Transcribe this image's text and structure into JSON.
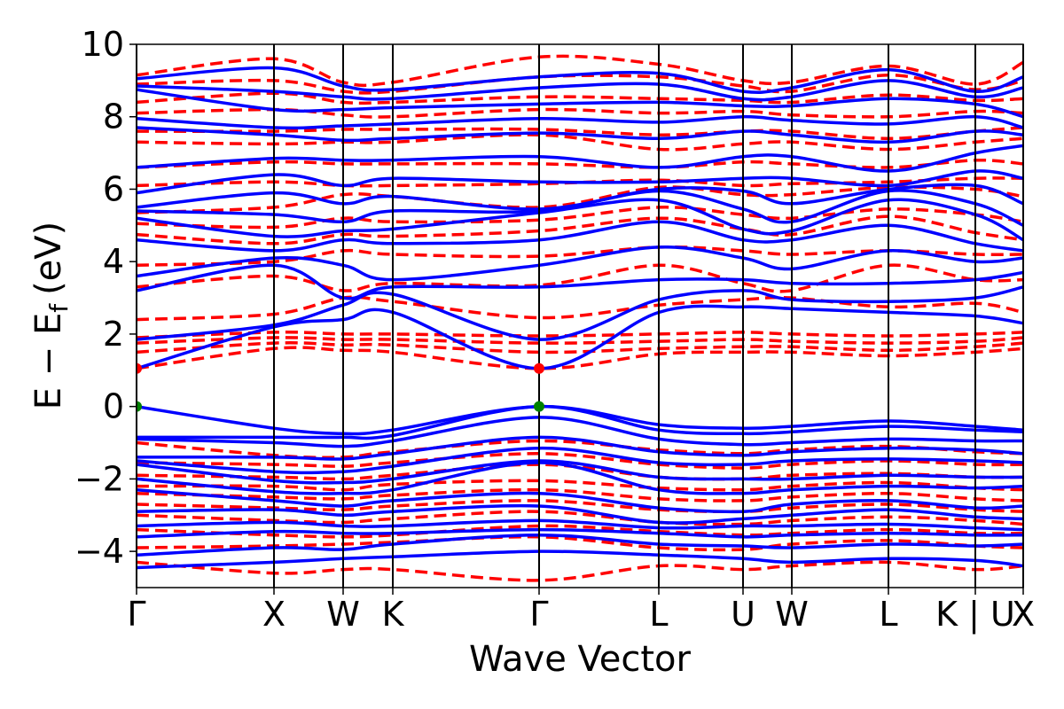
{
  "chart_data": {
    "type": "line",
    "title": "",
    "xlabel": "Wave Vector",
    "ylabel": "E − E",
    "ylabel_subscript": "f",
    "ylabel_unit": "(eV)",
    "ylim": [
      -5,
      10
    ],
    "yticks": [
      {
        "value": -4,
        "label": "−4"
      },
      {
        "value": -2,
        "label": "−2"
      },
      {
        "value": 0,
        "label": "0"
      },
      {
        "value": 2,
        "label": "2"
      },
      {
        "value": 4,
        "label": "4"
      },
      {
        "value": 6,
        "label": "6"
      },
      {
        "value": 8,
        "label": "8"
      },
      {
        "value": 10,
        "label": "10"
      }
    ],
    "xlim": [
      0,
      1
    ],
    "kpoints": [
      {
        "label": "Γ",
        "x": 0.0
      },
      {
        "label": "X",
        "x": 0.155
      },
      {
        "label": "W",
        "x": 0.233
      },
      {
        "label": "K",
        "x": 0.289
      },
      {
        "label": "Γ",
        "x": 0.454
      },
      {
        "label": "L",
        "x": 0.589
      },
      {
        "label": "U",
        "x": 0.684
      },
      {
        "label": "W",
        "x": 0.739
      },
      {
        "label": "L",
        "x": 0.848
      },
      {
        "label": "K | U",
        "x": 0.946
      },
      {
        "label": "X",
        "x": 1.0
      }
    ],
    "grid": false,
    "legend": "none",
    "colors": {
      "spin_up": "#0000ff",
      "spin_down": "#ff0000",
      "vbm": "#008000",
      "cbm": "#ff0000"
    },
    "series": [
      {
        "style": "solid",
        "color": "#0000ff",
        "bands": [
          [
            -4.45,
            -4.3,
            -4.2,
            -4.15,
            -4.0,
            -4.1,
            -4.2,
            -4.3,
            -4.2,
            -4.25,
            -4.4
          ],
          [
            -4.1,
            -3.9,
            -3.95,
            -3.8,
            -3.55,
            -3.8,
            -3.85,
            -3.9,
            -3.8,
            -3.85,
            -3.8
          ],
          [
            -3.6,
            -3.45,
            -3.5,
            -3.5,
            -3.4,
            -3.5,
            -3.6,
            -3.55,
            -3.5,
            -3.55,
            -3.55
          ],
          [
            -3.3,
            -3.2,
            -3.3,
            -3.3,
            -3.15,
            -3.35,
            -3.3,
            -3.3,
            -3.25,
            -3.35,
            -3.4
          ],
          [
            -2.9,
            -2.85,
            -3.0,
            -2.9,
            -2.75,
            -3.2,
            -3.1,
            -3.0,
            -2.85,
            -3.05,
            -3.1
          ],
          [
            -2.3,
            -2.6,
            -2.75,
            -2.6,
            -2.4,
            -2.8,
            -2.9,
            -2.7,
            -2.6,
            -2.8,
            -2.75
          ],
          [
            -2.0,
            -2.35,
            -2.4,
            -2.3,
            -1.55,
            -2.3,
            -2.4,
            -2.3,
            -2.2,
            -2.25,
            -2.2
          ],
          [
            -1.6,
            -2.05,
            -2.1,
            -2.0,
            -1.5,
            -1.95,
            -2.0,
            -2.0,
            -1.9,
            -1.95,
            -1.95
          ],
          [
            -1.5,
            -1.8,
            -1.8,
            -1.65,
            -1.15,
            -1.55,
            -1.6,
            -1.5,
            -1.45,
            -1.5,
            -1.55
          ],
          [
            -1.4,
            -1.4,
            -1.45,
            -1.3,
            -0.85,
            -1.25,
            -1.35,
            -1.25,
            -1.15,
            -1.2,
            -1.3
          ],
          [
            -0.9,
            -1.0,
            -1.1,
            -0.95,
            -0.3,
            -0.9,
            -1.05,
            -1.0,
            -0.9,
            -0.95,
            -0.95
          ],
          [
            -0.85,
            -0.85,
            -0.85,
            -0.8,
            0.0,
            -0.65,
            -0.75,
            -0.7,
            -0.55,
            -0.65,
            -0.7
          ],
          [
            0.0,
            -0.6,
            -0.75,
            -0.65,
            0.0,
            -0.5,
            -0.6,
            -0.55,
            -0.4,
            -0.55,
            -0.65
          ],
          [
            1.05,
            2.2,
            2.4,
            2.6,
            1.05,
            2.6,
            2.75,
            2.7,
            2.6,
            2.5,
            2.3
          ],
          [
            1.85,
            2.25,
            2.8,
            3.1,
            1.85,
            2.95,
            3.2,
            2.95,
            2.9,
            3.0,
            3.3
          ],
          [
            3.2,
            3.9,
            3.0,
            3.3,
            3.3,
            3.5,
            3.5,
            3.4,
            3.4,
            3.5,
            3.7
          ],
          [
            3.6,
            4.1,
            3.9,
            3.5,
            3.9,
            4.4,
            4.1,
            3.8,
            4.3,
            4.0,
            4.1
          ],
          [
            4.6,
            4.3,
            4.6,
            4.5,
            4.6,
            5.1,
            4.6,
            4.6,
            5.0,
            4.5,
            4.3
          ],
          [
            5.2,
            4.7,
            4.85,
            4.9,
            5.35,
            5.7,
            4.9,
            4.85,
            5.7,
            5.3,
            4.6
          ],
          [
            5.4,
            5.3,
            5.1,
            5.4,
            5.4,
            5.95,
            5.45,
            5.1,
            5.95,
            5.6,
            5.0
          ],
          [
            5.5,
            5.9,
            5.6,
            5.8,
            5.45,
            6.0,
            5.95,
            5.6,
            6.0,
            6.1,
            5.6
          ],
          [
            5.9,
            6.4,
            6.1,
            6.3,
            6.2,
            6.2,
            6.3,
            6.3,
            6.1,
            6.5,
            6.3
          ],
          [
            6.6,
            6.85,
            6.8,
            6.8,
            6.9,
            6.6,
            6.9,
            6.9,
            6.5,
            7.0,
            7.2
          ],
          [
            7.7,
            7.5,
            7.35,
            7.4,
            7.55,
            7.4,
            7.6,
            7.5,
            7.3,
            7.6,
            7.5
          ],
          [
            7.95,
            7.7,
            7.75,
            7.8,
            7.95,
            7.85,
            8.0,
            7.9,
            7.8,
            8.0,
            7.7
          ],
          [
            8.75,
            8.2,
            8.2,
            8.25,
            8.35,
            8.4,
            8.3,
            8.3,
            8.5,
            8.35,
            8.0
          ],
          [
            8.85,
            8.7,
            8.55,
            8.5,
            8.8,
            8.9,
            8.5,
            8.55,
            9.0,
            8.55,
            8.8
          ],
          [
            9.05,
            9.35,
            8.85,
            8.75,
            9.1,
            9.2,
            8.7,
            8.8,
            9.3,
            8.7,
            9.1
          ]
        ]
      },
      {
        "style": "dashed",
        "color": "#ff0000",
        "bands": [
          [
            -4.3,
            -4.6,
            -4.5,
            -4.5,
            -4.8,
            -4.4,
            -4.5,
            -4.4,
            -4.3,
            -4.5,
            -4.4
          ],
          [
            -3.9,
            -3.85,
            -3.8,
            -3.75,
            -3.6,
            -3.9,
            -3.95,
            -3.8,
            -3.7,
            -3.85,
            -3.9
          ],
          [
            -3.4,
            -3.55,
            -3.6,
            -3.55,
            -3.3,
            -3.45,
            -3.55,
            -3.5,
            -3.4,
            -3.5,
            -3.5
          ],
          [
            -3.0,
            -3.15,
            -3.2,
            -3.1,
            -2.9,
            -3.2,
            -3.25,
            -3.15,
            -3.05,
            -3.15,
            -3.25
          ],
          [
            -2.7,
            -2.8,
            -2.85,
            -2.75,
            -2.6,
            -2.85,
            -2.9,
            -2.8,
            -2.7,
            -2.85,
            -2.9
          ],
          [
            -2.4,
            -2.5,
            -2.55,
            -2.45,
            -2.3,
            -2.55,
            -2.6,
            -2.5,
            -2.4,
            -2.55,
            -2.6
          ],
          [
            -2.2,
            -2.2,
            -2.3,
            -2.15,
            -2.05,
            -2.25,
            -2.3,
            -2.2,
            -2.1,
            -2.25,
            -2.3
          ],
          [
            -1.9,
            -1.95,
            -2.0,
            -1.9,
            -1.6,
            -1.95,
            -2.0,
            -1.9,
            -1.85,
            -1.95,
            -1.95
          ],
          [
            -1.55,
            -1.6,
            -1.65,
            -1.55,
            -1.3,
            -1.6,
            -1.7,
            -1.6,
            -1.5,
            -1.6,
            -1.6
          ],
          [
            -1.0,
            -1.35,
            -1.4,
            -1.25,
            -0.95,
            -1.2,
            -1.3,
            -1.2,
            -1.1,
            -1.25,
            -1.3
          ],
          [
            1.05,
            1.6,
            1.55,
            1.5,
            1.05,
            1.45,
            1.5,
            1.5,
            1.4,
            1.5,
            1.6
          ],
          [
            1.5,
            1.75,
            1.7,
            1.7,
            1.5,
            1.6,
            1.65,
            1.65,
            1.55,
            1.65,
            1.75
          ],
          [
            1.75,
            1.9,
            1.85,
            1.85,
            1.75,
            1.8,
            1.85,
            1.8,
            1.75,
            1.8,
            1.9
          ],
          [
            1.9,
            2.05,
            2.0,
            2.0,
            1.95,
            2.0,
            2.05,
            2.0,
            1.95,
            2.0,
            2.05
          ],
          [
            2.4,
            2.55,
            3.0,
            2.9,
            2.45,
            2.8,
            2.95,
            3.0,
            2.75,
            2.85,
            2.6
          ],
          [
            3.3,
            3.6,
            3.2,
            3.4,
            3.35,
            3.9,
            3.4,
            3.2,
            3.9,
            3.5,
            3.5
          ],
          [
            3.9,
            4.0,
            4.3,
            4.2,
            4.15,
            4.4,
            4.3,
            4.2,
            4.3,
            4.2,
            4.2
          ],
          [
            4.75,
            4.5,
            4.75,
            4.7,
            4.85,
            5.2,
            4.9,
            4.75,
            5.25,
            4.8,
            4.6
          ],
          [
            5.05,
            4.95,
            5.2,
            5.1,
            5.15,
            5.5,
            5.3,
            5.2,
            5.45,
            5.3,
            5.1
          ],
          [
            5.35,
            5.5,
            5.85,
            5.8,
            5.5,
            6.05,
            5.85,
            5.85,
            6.05,
            6.0,
            5.8
          ],
          [
            6.1,
            6.2,
            6.1,
            6.1,
            6.15,
            6.25,
            6.1,
            6.15,
            6.2,
            6.3,
            6.3
          ],
          [
            6.6,
            6.75,
            6.7,
            6.7,
            6.7,
            6.6,
            6.75,
            6.7,
            6.6,
            6.8,
            6.7
          ],
          [
            7.3,
            7.25,
            7.3,
            7.3,
            7.5,
            7.1,
            7.25,
            7.3,
            7.1,
            7.3,
            7.4
          ],
          [
            7.6,
            7.6,
            7.65,
            7.65,
            7.65,
            7.5,
            7.6,
            7.6,
            7.4,
            7.6,
            7.7
          ],
          [
            8.1,
            8.2,
            8.05,
            8.0,
            8.2,
            8.1,
            8.15,
            8.05,
            8.0,
            8.15,
            8.1
          ],
          [
            8.4,
            8.65,
            8.4,
            8.4,
            8.55,
            8.5,
            8.45,
            8.4,
            8.6,
            8.45,
            8.5
          ],
          [
            8.9,
            9.0,
            8.7,
            8.7,
            9.1,
            9.1,
            8.85,
            8.7,
            9.15,
            8.75,
            9.0
          ],
          [
            9.15,
            9.6,
            8.95,
            8.95,
            9.65,
            9.45,
            9.0,
            8.95,
            9.4,
            8.9,
            9.5
          ]
        ]
      }
    ],
    "markers": [
      {
        "kind": "vbm",
        "k": [
          0.0,
          0.454
        ],
        "e": 0.0,
        "color": "#008000"
      },
      {
        "kind": "cbm",
        "k": [
          0.0,
          0.454
        ],
        "e": 1.05,
        "color": "#ff0000"
      }
    ]
  }
}
